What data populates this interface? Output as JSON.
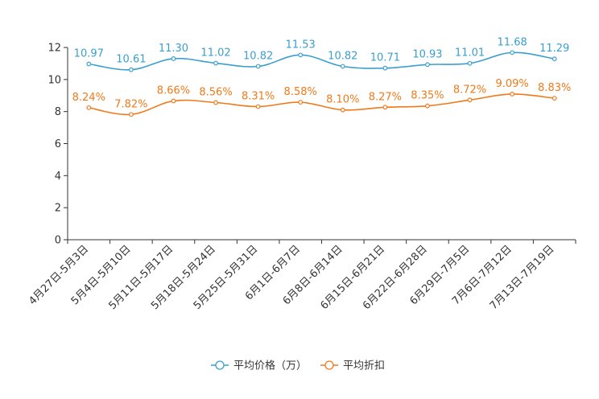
{
  "chart_data": {
    "type": "line",
    "title": "",
    "xlabel": "",
    "ylabel": "",
    "ylim": [
      0,
      12
    ],
    "yticks": [
      0,
      2,
      4,
      6,
      8,
      10,
      12
    ],
    "grid": false,
    "legend_position": "bottom",
    "categories": [
      "4月27日-5月3日",
      "5月4日-5月10日",
      "5月11日-5月17日",
      "5月18日-5月24日",
      "5月25日-5月31日",
      "6月1日-6月7日",
      "6月8日-6月14日",
      "6月15日-6月21日",
      "6月22日-6月28日",
      "6月29日-7月5日",
      "7月6日-7月12日",
      "7月13日-7月19日"
    ],
    "series": [
      {
        "name": "平均价格（万）",
        "color": "#3a9fd0",
        "values": [
          10.97,
          10.61,
          11.3,
          11.02,
          10.82,
          11.53,
          10.82,
          10.71,
          10.93,
          11.01,
          11.68,
          11.29
        ],
        "labels": [
          "10.97",
          "10.61",
          "11.30",
          "11.02",
          "10.82",
          "11.53",
          "10.82",
          "10.71",
          "10.93",
          "11.01",
          "11.68",
          "11.29"
        ]
      },
      {
        "name": "平均折扣",
        "color": "#f07a1a",
        "values": [
          8.24,
          7.82,
          8.66,
          8.56,
          8.31,
          8.58,
          8.1,
          8.27,
          8.35,
          8.72,
          9.09,
          8.83
        ],
        "labels": [
          "8.24%",
          "7.82%",
          "8.66%",
          "8.56%",
          "8.31%",
          "8.58%",
          "8.10%",
          "8.27%",
          "8.35%",
          "8.72%",
          "9.09%",
          "8.83%"
        ]
      }
    ]
  }
}
